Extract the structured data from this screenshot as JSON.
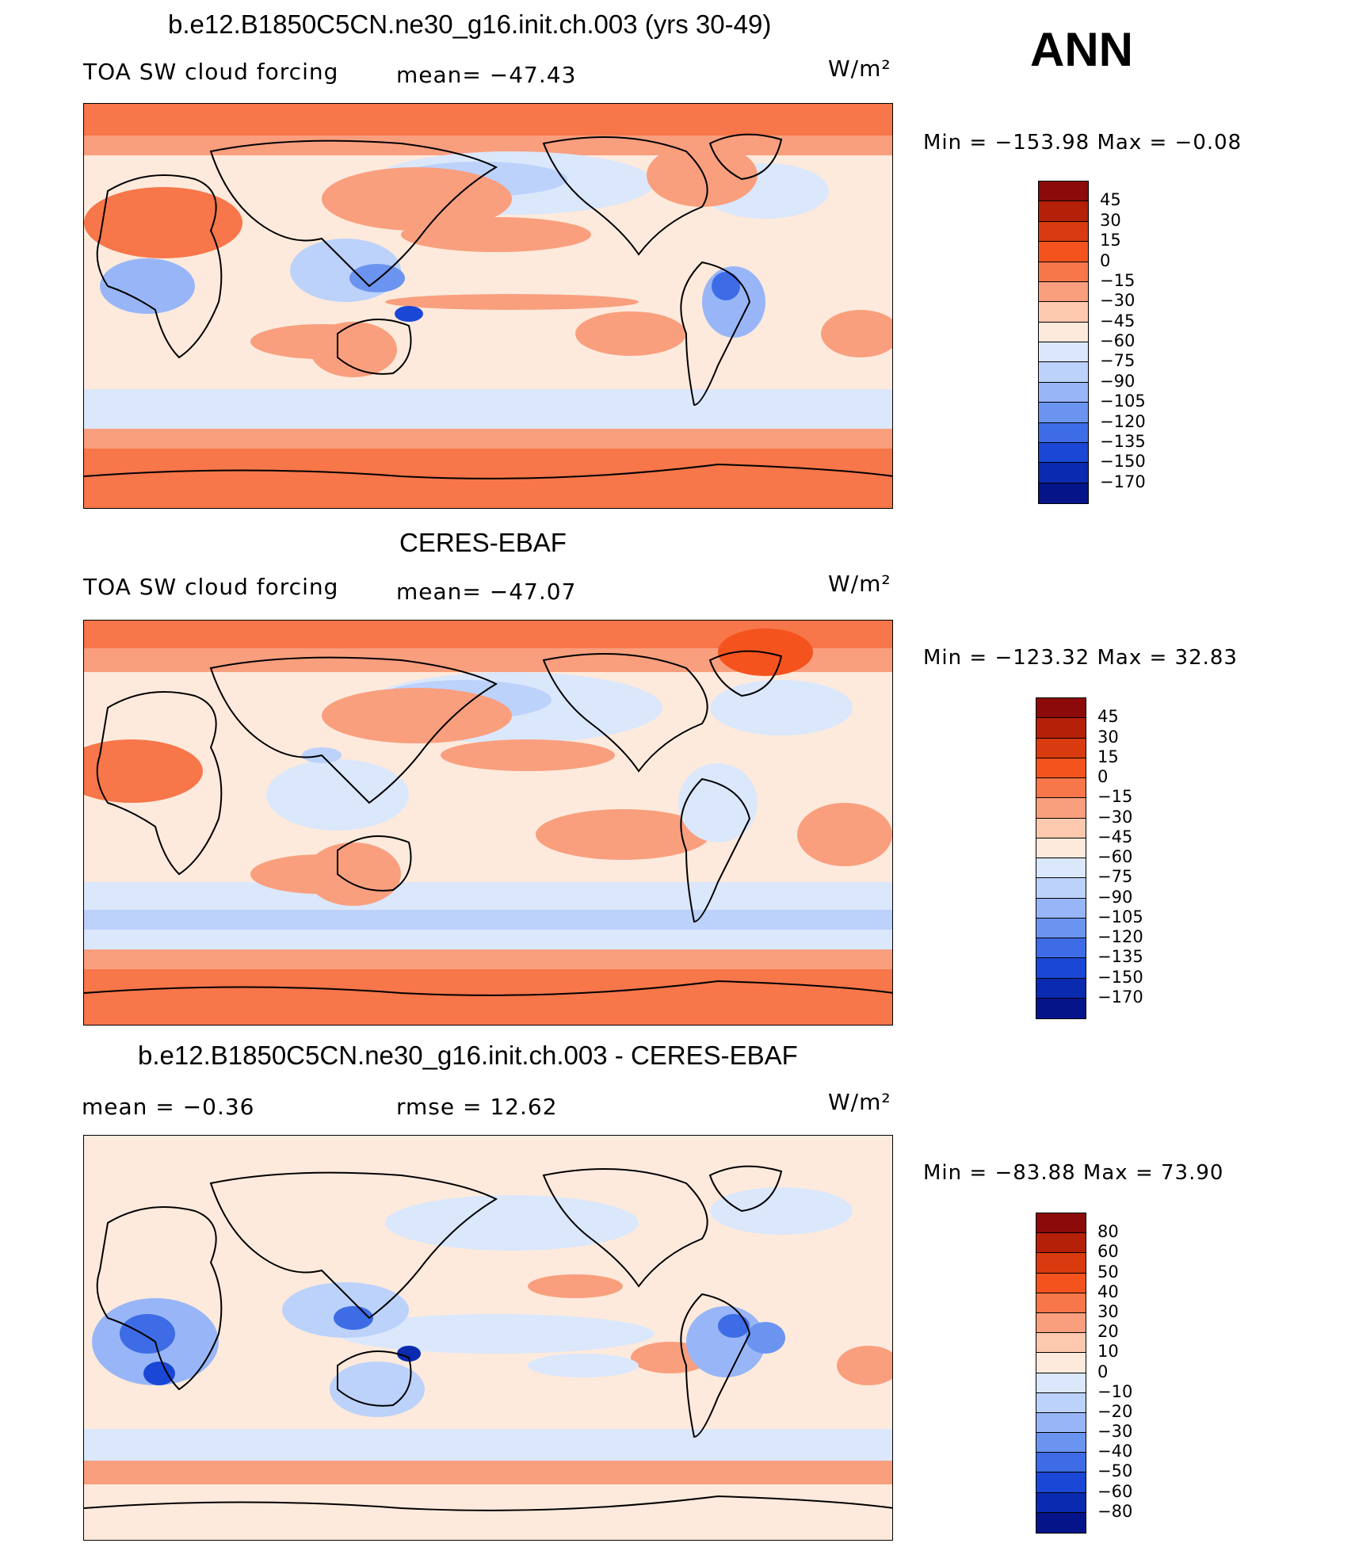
{
  "season": "ANN",
  "colors": {
    "land_outline": "#000000",
    "ocean_bg_model": "#fde3d0",
    "ocean_bg_obs": "#fde3d0",
    "ocean_bg_diff": "#fdeade"
  },
  "panels": [
    {
      "title": "b.e12.B1850C5CN.ne30_g16.init.ch.003 (yrs 30-49)",
      "left_label": "TOA SW cloud forcing",
      "mid_label": "mean= −47.43",
      "units": "W/m²",
      "minmax": "Min  =  −153.98  Max  =    −0.08",
      "levels": [
        "45",
        "30",
        "15",
        "0",
        "−15",
        "−30",
        "−45",
        "−60",
        "−75",
        "−90",
        "−105",
        "−120",
        "−135",
        "−150",
        "−170"
      ],
      "colors": [
        "#8c0a0a",
        "#b52008",
        "#d93a10",
        "#f5531e",
        "#f7764a",
        "#f99f7e",
        "#fdc9ae",
        "#fdeadc",
        "#dbe7fb",
        "#bcd2fb",
        "#98b6f7",
        "#6b94f0",
        "#3d6ce6",
        "#1b47d6",
        "#0a2ab0",
        "#06148a"
      ]
    },
    {
      "title": "CERES-EBAF",
      "left_label": "TOA SW cloud forcing",
      "mid_label": "mean= −47.07",
      "units": "W/m²",
      "minmax": "Min  =  −123.32  Max  =    32.83",
      "levels": [
        "45",
        "30",
        "15",
        "0",
        "−15",
        "−30",
        "−45",
        "−60",
        "−75",
        "−90",
        "−105",
        "−120",
        "−135",
        "−150",
        "−170"
      ],
      "colors": [
        "#8c0a0a",
        "#b52008",
        "#d93a10",
        "#f5531e",
        "#f7764a",
        "#f99f7e",
        "#fdc9ae",
        "#fdeadc",
        "#dbe7fb",
        "#bcd2fb",
        "#98b6f7",
        "#6b94f0",
        "#3d6ce6",
        "#1b47d6",
        "#0a2ab0",
        "#06148a"
      ]
    },
    {
      "title": "b.e12.B1850C5CN.ne30_g16.init.ch.003 - CERES-EBAF",
      "left_label": "mean  =    −0.36",
      "mid_label": "rmse  =    12.62",
      "units": "W/m²",
      "minmax": "Min  =  −83.88  Max  =    73.90",
      "levels": [
        "80",
        "60",
        "50",
        "40",
        "30",
        "20",
        "10",
        "0",
        "−10",
        "−20",
        "−30",
        "−40",
        "−50",
        "−60",
        "−80"
      ],
      "colors": [
        "#8c0a0a",
        "#b52008",
        "#d93a10",
        "#f5531e",
        "#f7764a",
        "#f99f7e",
        "#fdc9ae",
        "#fdeadc",
        "#dbe7fb",
        "#bcd2fb",
        "#98b6f7",
        "#6b94f0",
        "#3d6ce6",
        "#1b47d6",
        "#0a2ab0",
        "#06148a"
      ]
    }
  ]
}
